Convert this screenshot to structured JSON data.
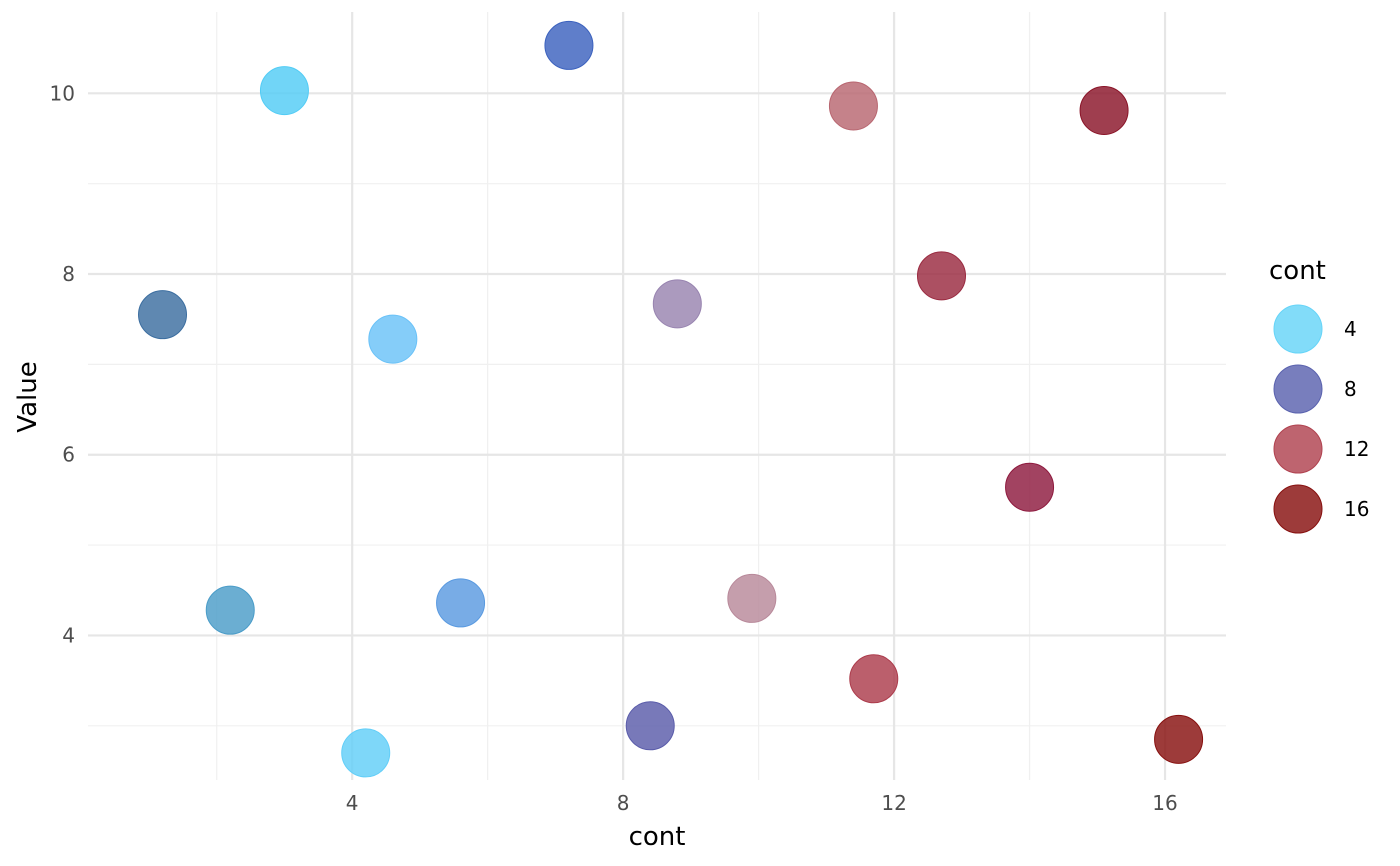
{
  "chart_data": {
    "type": "scatter",
    "xlabel": "cont",
    "ylabel": "Value",
    "xlim": [
      0.1,
      16.9
    ],
    "ylim": [
      2.4,
      10.9
    ],
    "x_ticks_major": [
      4,
      8,
      12,
      16
    ],
    "x_ticks_minor": [
      2,
      6,
      10,
      14
    ],
    "y_ticks_major": [
      4,
      6,
      8,
      10
    ],
    "y_ticks_minor": [
      3,
      5,
      7,
      9
    ],
    "x_tick_labels": [
      "4",
      "8",
      "12",
      "16"
    ],
    "y_tick_labels": [
      "4",
      "6",
      "8",
      "10"
    ],
    "grid": true,
    "legend": {
      "title": "cont",
      "placement": "right",
      "entries": [
        {
          "label": "4",
          "color": "#66D4F8"
        },
        {
          "label": "8",
          "color": "#5A62AE"
        },
        {
          "label": "12",
          "color": "#B0424F"
        },
        {
          "label": "16",
          "color": "#87100F"
        }
      ]
    },
    "points": [
      {
        "x": 1.2,
        "y": 7.55,
        "color": "#3C6EA0"
      },
      {
        "x": 2.2,
        "y": 4.28,
        "color": "#4A9CC8"
      },
      {
        "x": 3.0,
        "y": 10.03,
        "color": "#52CCF5"
      },
      {
        "x": 4.2,
        "y": 2.7,
        "color": "#62CEF8"
      },
      {
        "x": 4.6,
        "y": 7.28,
        "color": "#6AC2F8"
      },
      {
        "x": 5.6,
        "y": 4.36,
        "color": "#5A9AE0"
      },
      {
        "x": 7.2,
        "y": 10.53,
        "color": "#3C62BE"
      },
      {
        "x": 8.4,
        "y": 3.0,
        "color": "#5A5CAA"
      },
      {
        "x": 8.8,
        "y": 7.67,
        "color": "#9884B0"
      },
      {
        "x": 9.9,
        "y": 4.41,
        "color": "#B8899A"
      },
      {
        "x": 11.4,
        "y": 9.86,
        "color": "#B86670"
      },
      {
        "x": 11.7,
        "y": 3.52,
        "color": "#AC3C4C"
      },
      {
        "x": 12.7,
        "y": 7.98,
        "color": "#9A2A40"
      },
      {
        "x": 14.0,
        "y": 5.64,
        "color": "#8E1A3E"
      },
      {
        "x": 15.1,
        "y": 9.81,
        "color": "#8A1428"
      },
      {
        "x": 16.2,
        "y": 2.85,
        "color": "#87100F"
      }
    ]
  }
}
